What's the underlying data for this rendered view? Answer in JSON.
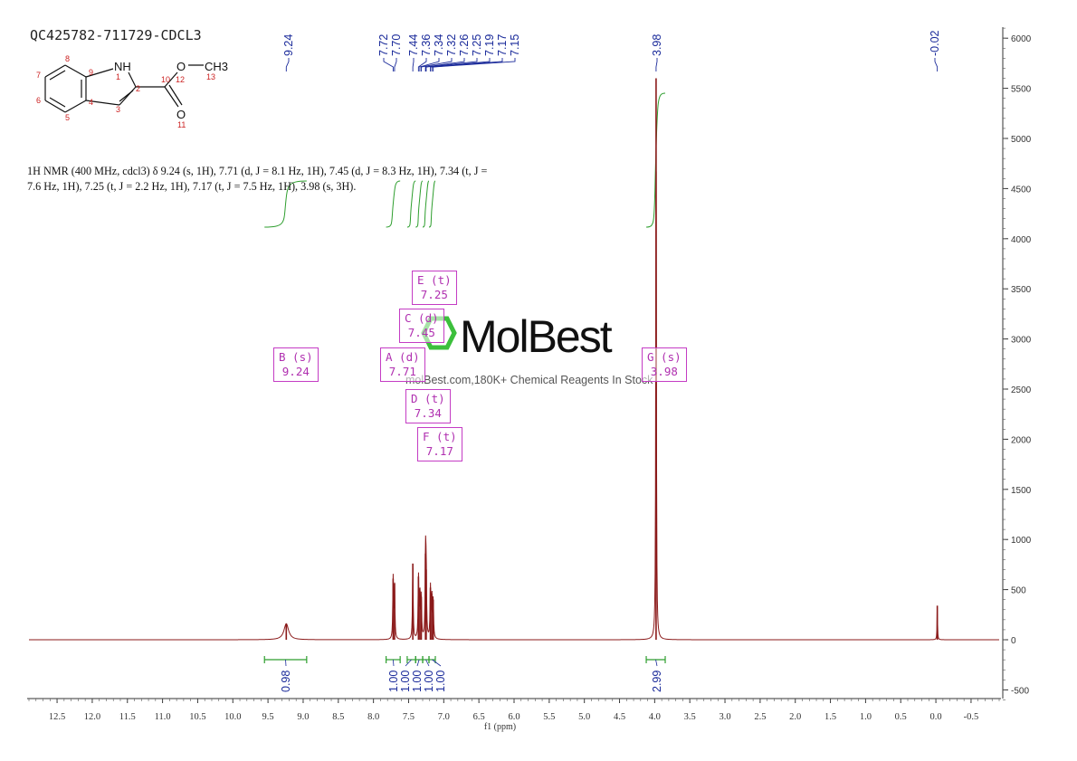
{
  "sample_id": "QC425782-711729-CDCL3",
  "description": {
    "lines": [
      "1H NMR (400 MHz, cdcl3) δ 9.24 (s, 1H), 7.71 (d, J = 8.1 Hz, 1H), 7.45 (d, J = 8.3 Hz, 1H), 7.34 (t, J =",
      "7.6 Hz, 1H), 7.25 (t, J = 2.2 Hz, 1H), 7.17 (t, J = 7.5 Hz, 1H), 3.98 (s, 3H)."
    ]
  },
  "structure": {
    "atom_labels": [
      "NH",
      "O",
      "CH3",
      "O"
    ],
    "atom_numbers": [
      "1",
      "2",
      "3",
      "4",
      "5",
      "6",
      "7",
      "8",
      "9",
      "10",
      "11",
      "12",
      "13"
    ]
  },
  "watermark": {
    "brand": "MolBest",
    "tagline": "molBest.com,180K+ Chemical Reagents In Stock"
  },
  "assignments": [
    {
      "label": "B (s)",
      "shift": "9.24"
    },
    {
      "label": "A (d)",
      "shift": "7.71"
    },
    {
      "label": "C (d)",
      "shift": "7.45"
    },
    {
      "label": "E (t)",
      "shift": "7.25"
    },
    {
      "label": "D (t)",
      "shift": "7.34"
    },
    {
      "label": "F (t)",
      "shift": "7.17"
    },
    {
      "label": "G (s)",
      "shift": "3.98"
    }
  ],
  "colors": {
    "spectrum": "#8b1a1a",
    "integral": "#2e9e2e",
    "peak_label": "#1a2a9a",
    "assignment": "#c43cc4",
    "structure_number": "#cc2222"
  },
  "chart_data": {
    "type": "line",
    "title": "",
    "xlabel": "f1 (ppm)",
    "ylabel": "",
    "xlim": [
      12.9,
      -0.9
    ],
    "ylim": [
      -600,
      6100
    ],
    "x_axis_reversed": true,
    "x_ticks": [
      12.5,
      12.0,
      11.5,
      11.0,
      10.5,
      10.0,
      9.5,
      9.0,
      8.5,
      8.0,
      7.5,
      7.0,
      6.5,
      6.0,
      5.5,
      5.0,
      4.5,
      4.0,
      3.5,
      3.0,
      2.5,
      2.0,
      1.5,
      1.0,
      0.5,
      0.0,
      -0.5
    ],
    "x_tick_labels": [
      "12.5",
      "12.0",
      "11.5",
      "11.0",
      "10.5",
      "10.0",
      "9.5",
      "9.0",
      "8.5",
      "8.0",
      "7.5",
      "7.0",
      "6.5",
      "6.0",
      "5.5",
      "5.0",
      "4.5",
      "4.0",
      "3.5",
      "3.0",
      "2.5",
      "2.0",
      "1.5",
      "1.0",
      "0.5",
      "0.0",
      "-0.5"
    ],
    "y_ticks": [
      -500,
      0,
      500,
      1000,
      1500,
      2000,
      2500,
      3000,
      3500,
      4000,
      4500,
      5000,
      5500,
      6000
    ],
    "y_tick_labels": [
      "-500",
      "0",
      "500",
      "1000",
      "1500",
      "2000",
      "2500",
      "3000",
      "3500",
      "4000",
      "4500",
      "5000",
      "5500",
      "6000"
    ],
    "peaks": [
      {
        "ppm": 9.24,
        "height": 160,
        "width": 0.04
      },
      {
        "ppm": 7.72,
        "height": 610,
        "width": 0.006
      },
      {
        "ppm": 7.7,
        "height": 560,
        "width": 0.006
      },
      {
        "ppm": 7.44,
        "height": 760,
        "width": 0.006
      },
      {
        "ppm": 7.36,
        "height": 630,
        "width": 0.006
      },
      {
        "ppm": 7.34,
        "height": 490,
        "width": 0.006
      },
      {
        "ppm": 7.32,
        "height": 430,
        "width": 0.006
      },
      {
        "ppm": 7.26,
        "height": 860,
        "width": 0.006
      },
      {
        "ppm": 7.25,
        "height": 700,
        "width": 0.006
      },
      {
        "ppm": 7.19,
        "height": 520,
        "width": 0.006
      },
      {
        "ppm": 7.17,
        "height": 460,
        "width": 0.006
      },
      {
        "ppm": 7.15,
        "height": 400,
        "width": 0.006
      },
      {
        "ppm": 3.98,
        "height": 5600,
        "width": 0.005
      },
      {
        "ppm": -0.02,
        "height": 340,
        "width": 0.004
      }
    ],
    "peak_labels": [
      {
        "ppm": 9.24,
        "text": "9.24"
      },
      {
        "ppm": 7.72,
        "text": "7.72"
      },
      {
        "ppm": 7.7,
        "text": "7.70"
      },
      {
        "ppm": 7.44,
        "text": "7.44"
      },
      {
        "ppm": 7.36,
        "text": "7.36"
      },
      {
        "ppm": 7.34,
        "text": "7.34"
      },
      {
        "ppm": 7.32,
        "text": "7.32"
      },
      {
        "ppm": 7.26,
        "text": "7.26"
      },
      {
        "ppm": 7.25,
        "text": "7.25"
      },
      {
        "ppm": 7.19,
        "text": "7.19"
      },
      {
        "ppm": 7.17,
        "text": "7.17"
      },
      {
        "ppm": 7.15,
        "text": "7.15"
      },
      {
        "ppm": 3.98,
        "text": "3.98"
      },
      {
        "ppm": -0.02,
        "text": "-0.02"
      }
    ],
    "integrals": [
      {
        "from": 9.55,
        "to": 8.95,
        "value": "0.98"
      },
      {
        "from": 7.82,
        "to": 7.62,
        "value": "1.00"
      },
      {
        "from": 7.52,
        "to": 7.4,
        "value": "1.00"
      },
      {
        "from": 7.4,
        "to": 7.3,
        "value": "1.00"
      },
      {
        "from": 7.3,
        "to": 7.21,
        "value": "1.00"
      },
      {
        "from": 7.21,
        "to": 7.12,
        "value": "1.00"
      },
      {
        "from": 4.12,
        "to": 3.85,
        "value": "2.99"
      }
    ]
  }
}
